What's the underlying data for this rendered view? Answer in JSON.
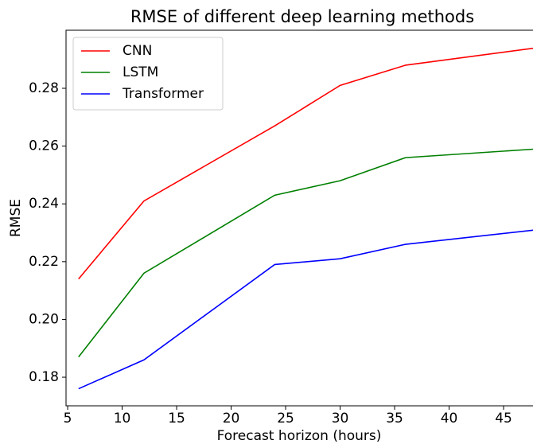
{
  "chart_data": {
    "type": "line",
    "title": "RMSE of different deep learning methods",
    "x_label": "Forecast horizon (hours)",
    "y_label": "RMSE",
    "x": [
      6,
      12,
      24,
      30,
      36,
      48
    ],
    "series": [
      {
        "name": "CNN",
        "color": "#ff0000",
        "values": [
          0.214,
          0.241,
          0.267,
          0.281,
          0.288,
          0.294
        ]
      },
      {
        "name": "LSTM",
        "color": "#008000",
        "values": [
          0.187,
          0.216,
          0.243,
          0.248,
          0.256,
          0.259
        ]
      },
      {
        "name": "Transformer",
        "color": "#0000ff",
        "values": [
          0.176,
          0.186,
          0.219,
          0.221,
          0.226,
          0.231
        ]
      }
    ],
    "xlim": [
      4.85,
      47.7
    ],
    "xticks": [
      5,
      10,
      15,
      20,
      25,
      30,
      35,
      40,
      45
    ],
    "ylim": [
      0.1701,
      0.3001
    ],
    "yticks": [
      0.18,
      {
        "value": 0.2,
        "label": "0.20"
      },
      0.22,
      0.24,
      0.26,
      0.28
    ],
    "legend": "upper left"
  }
}
